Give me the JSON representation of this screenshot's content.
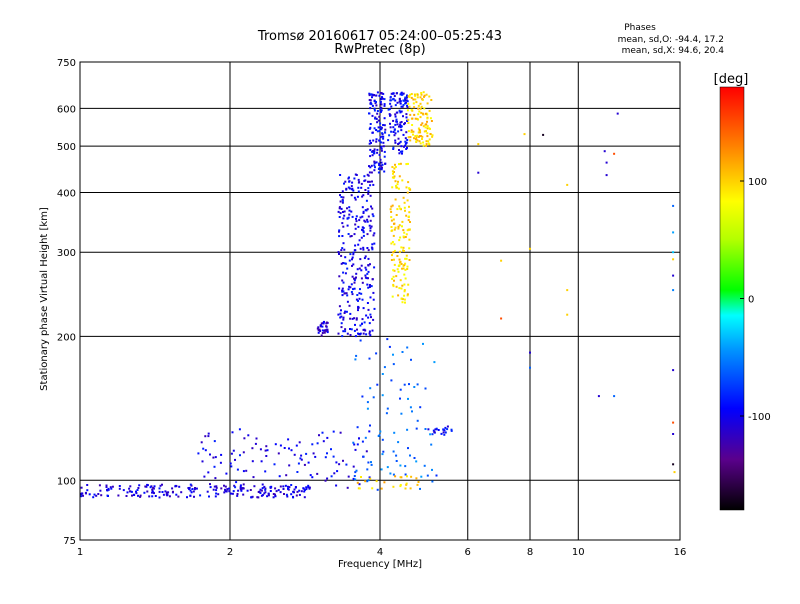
{
  "chart_data": {
    "type": "scatter",
    "title": "Tromsø 20160617 05:24:00–05:25:43",
    "subtitle": "RwPretec (8p)",
    "xlabel": "Frequency [MHz]",
    "ylabel": "Stationary phase Virtual Height [km]",
    "x_scale": "log",
    "y_scale": "log",
    "xlim": [
      1,
      16
    ],
    "ylim": [
      75,
      750
    ],
    "x_ticks": [
      1,
      2,
      4,
      6,
      8,
      10,
      16
    ],
    "y_ticks": [
      75,
      100,
      200,
      300,
      400,
      500,
      600,
      750
    ],
    "grid": true,
    "annotation": {
      "heading": "Phases",
      "line1": "mean, sd,O:  -94.4, 17.2",
      "line2": "mean, sd,X:  94.6, 20.4"
    },
    "colorbar": {
      "label": "[deg]",
      "range": [
        -180,
        180
      ],
      "ticks": [
        100,
        0,
        -100
      ]
    },
    "clusters": [
      {
        "f0": 1.0,
        "f1": 2.9,
        "h0": 92,
        "h1": 98,
        "phase": -105,
        "n": 220
      },
      {
        "f0": 1.7,
        "f1": 3.9,
        "h0": 96,
        "h1": 128,
        "phase": -100,
        "n": 120
      },
      {
        "f0": 3.0,
        "f1": 3.15,
        "h0": 200,
        "h1": 215,
        "phase": -110,
        "n": 35
      },
      {
        "f0": 3.3,
        "f1": 3.9,
        "h0": 200,
        "h1": 440,
        "phase": -100,
        "n": 300
      },
      {
        "f0": 3.8,
        "f1": 4.1,
        "h0": 440,
        "h1": 650,
        "phase": -100,
        "n": 140
      },
      {
        "f0": 4.15,
        "f1": 4.55,
        "h0": 480,
        "h1": 650,
        "phase": -95,
        "n": 120
      },
      {
        "f0": 4.55,
        "f1": 5.1,
        "h0": 500,
        "h1": 650,
        "phase": 100,
        "n": 120
      },
      {
        "f0": 4.2,
        "f1": 4.6,
        "h0": 235,
        "h1": 460,
        "phase": 95,
        "n": 150
      },
      {
        "f0": 3.5,
        "f1": 5.2,
        "h0": 95,
        "h1": 200,
        "phase": -60,
        "n": 90
      },
      {
        "f0": 3.6,
        "f1": 4.8,
        "h0": 96,
        "h1": 102,
        "phase": 100,
        "n": 25
      },
      {
        "f0": 5.0,
        "f1": 5.6,
        "h0": 124,
        "h1": 130,
        "phase": -95,
        "n": 20
      }
    ],
    "points": [
      {
        "x": 6.3,
        "y": 505,
        "phase": 100
      },
      {
        "x": 6.3,
        "y": 440,
        "phase": -110
      },
      {
        "x": 7.0,
        "y": 288,
        "phase": 100
      },
      {
        "x": 7.0,
        "y": 218,
        "phase": 150
      },
      {
        "x": 7.8,
        "y": 530,
        "phase": 100
      },
      {
        "x": 8.0,
        "y": 305,
        "phase": 100
      },
      {
        "x": 8.0,
        "y": 185,
        "phase": -110
      },
      {
        "x": 8.0,
        "y": 172,
        "phase": -60
      },
      {
        "x": 8.5,
        "y": 528,
        "phase": -170
      },
      {
        "x": 9.5,
        "y": 415,
        "phase": 100
      },
      {
        "x": 9.5,
        "y": 250,
        "phase": 100
      },
      {
        "x": 9.5,
        "y": 222,
        "phase": 100
      },
      {
        "x": 11.3,
        "y": 488,
        "phase": -110
      },
      {
        "x": 11.4,
        "y": 435,
        "phase": -110
      },
      {
        "x": 11.4,
        "y": 462,
        "phase": -110
      },
      {
        "x": 11.8,
        "y": 482,
        "phase": 150
      },
      {
        "x": 12.0,
        "y": 585,
        "phase": -110
      },
      {
        "x": 11.0,
        "y": 150,
        "phase": -110
      },
      {
        "x": 11.8,
        "y": 150,
        "phase": -60
      },
      {
        "x": 15.5,
        "y": 375,
        "phase": -60
      },
      {
        "x": 15.5,
        "y": 330,
        "phase": -40
      },
      {
        "x": 15.5,
        "y": 300,
        "phase": -30
      },
      {
        "x": 15.5,
        "y": 290,
        "phase": 100
      },
      {
        "x": 15.5,
        "y": 268,
        "phase": -110
      },
      {
        "x": 15.5,
        "y": 250,
        "phase": -50
      },
      {
        "x": 15.5,
        "y": 170,
        "phase": -110
      },
      {
        "x": 15.5,
        "y": 132,
        "phase": 150
      },
      {
        "x": 15.5,
        "y": 125,
        "phase": -110
      },
      {
        "x": 15.5,
        "y": 108,
        "phase": -170
      },
      {
        "x": 15.6,
        "y": 104,
        "phase": 100
      }
    ]
  }
}
